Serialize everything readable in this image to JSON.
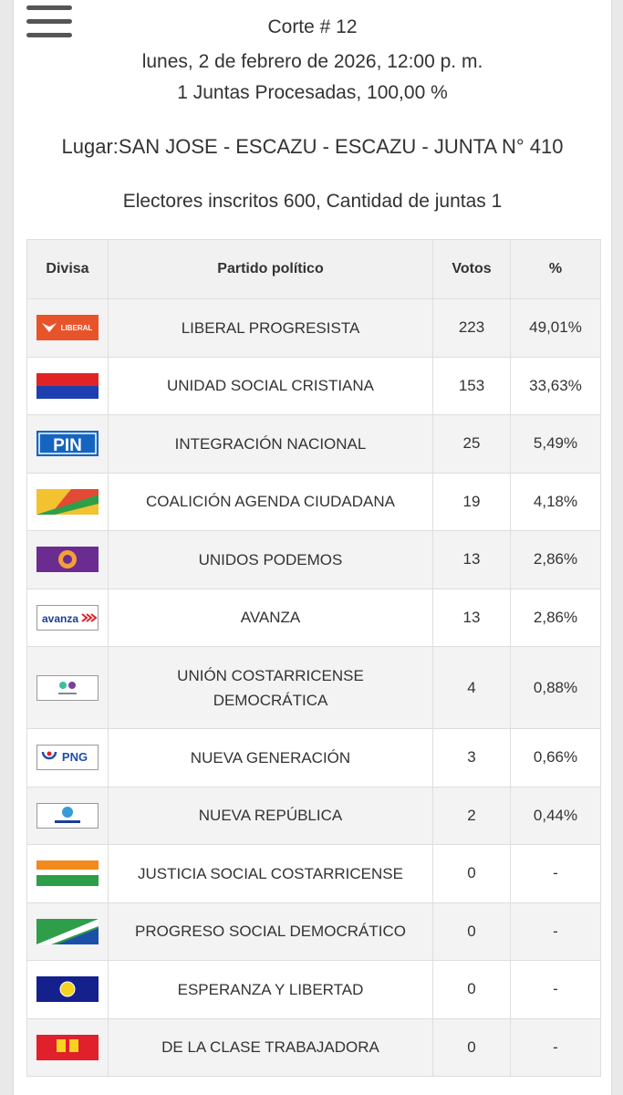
{
  "header": {
    "corte": "Corte # 12",
    "date": "lunes, 2 de febrero de 2026, 12:00 p. m.",
    "juntas": "1 Juntas Procesadas, 100,00 %",
    "lugar": "Lugar:SAN JOSE - ESCAZU - ESCAZU - JUNTA N° 410",
    "electores": "Electores inscritos 600, Cantidad de juntas 1"
  },
  "table": {
    "columns": [
      "Divisa",
      "Partido político",
      "Votos",
      "%"
    ],
    "rows": [
      {
        "flag": "liberal-progresista-flag",
        "party": "LIBERAL PROGRESISTA",
        "votes": "223",
        "pct": "49,01%",
        "flag_text": "LIBERAL"
      },
      {
        "flag": "unidad-social-cristiana-flag",
        "party": "UNIDAD SOCIAL CRISTIANA",
        "votes": "153",
        "pct": "33,63%"
      },
      {
        "flag": "integracion-nacional-flag",
        "party": "INTEGRACIÓN NACIONAL",
        "votes": "25",
        "pct": "5,49%",
        "flag_text": "PIN"
      },
      {
        "flag": "coalicion-agenda-ciudadana-flag",
        "party": "COALICIÓN AGENDA CIUDADANA",
        "votes": "19",
        "pct": "4,18%"
      },
      {
        "flag": "unidos-podemos-flag",
        "party": "UNIDOS PODEMOS",
        "votes": "13",
        "pct": "2,86%"
      },
      {
        "flag": "avanza-flag",
        "party": "AVANZA",
        "votes": "13",
        "pct": "2,86%",
        "flag_text": "avanza"
      },
      {
        "flag": "union-costarricense-democratica-flag",
        "party_line1": "UNIÓN COSTARRICENSE",
        "party_line2": "DEMOCRÁTICA",
        "votes": "4",
        "pct": "0,88%"
      },
      {
        "flag": "nueva-generacion-flag",
        "party": "NUEVA GENERACIÓN",
        "votes": "3",
        "pct": "0,66%",
        "flag_text": "PNG"
      },
      {
        "flag": "nueva-republica-flag",
        "party": "NUEVA REPÚBLICA",
        "votes": "2",
        "pct": "0,44%"
      },
      {
        "flag": "justicia-social-costarricense-flag",
        "party": "JUSTICIA SOCIAL COSTARRICENSE",
        "votes": "0",
        "pct": "-"
      },
      {
        "flag": "progreso-social-democratico-flag",
        "party": "PROGRESO SOCIAL DEMOCRÁTICO",
        "votes": "0",
        "pct": "-"
      },
      {
        "flag": "esperanza-y-libertad-flag",
        "party": "ESPERANZA Y LIBERTAD",
        "votes": "0",
        "pct": "-"
      },
      {
        "flag": "de-la-clase-trabajadora-flag",
        "party": "DE LA CLASE TRABAJADORA",
        "votes": "0",
        "pct": "-"
      }
    ]
  }
}
